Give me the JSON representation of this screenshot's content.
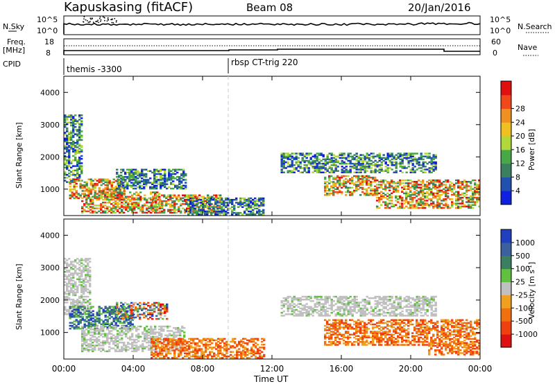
{
  "header": {
    "station": "Kapuskasing (fitACF)",
    "beam": "Beam 08",
    "date": "20/Jan/2016"
  },
  "sky_panel": {
    "left_label": "N.Sky",
    "right_label": "N.Search",
    "left_ticks": [
      "10^5",
      "10^0"
    ],
    "right_ticks": [
      "10^5",
      "10^0"
    ]
  },
  "freq_panel": {
    "left_label_1": "Freq.",
    "left_label_2": "[MHz]",
    "right_label": "Nave",
    "left_ticks": [
      "18",
      "8"
    ],
    "right_ticks": [
      "60",
      "0"
    ]
  },
  "cpid": {
    "label": "CPID",
    "segments": [
      {
        "time": 0.0,
        "text": "themis -3300"
      },
      {
        "time": 9.5,
        "text": "rbsp CT-trig 220"
      }
    ]
  },
  "chart_data": [
    {
      "type": "heatmap",
      "title": "Power",
      "ylabel": "Slant Range [km]",
      "xlim": [
        0,
        24
      ],
      "ylim": [
        180,
        4500
      ],
      "yticks": [
        1000,
        2000,
        3000,
        4000
      ],
      "colorbar": {
        "label": "Power [dB]",
        "ticks": [
          "4",
          "8",
          "12",
          "16",
          "20",
          "24",
          "28"
        ],
        "colors": [
          "#1020e0",
          "#2050b0",
          "#3a8060",
          "#48a848",
          "#b0d838",
          "#f0c020",
          "#f09020",
          "#f04818",
          "#e01010"
        ]
      },
      "echo_regions": [
        {
          "t": [
            0.0,
            1.0
          ],
          "r": [
            1200,
            3300
          ],
          "level": "mid"
        },
        {
          "t": [
            0.3,
            3.5
          ],
          "r": [
            700,
            1300
          ],
          "level": "high"
        },
        {
          "t": [
            1.0,
            5.5
          ],
          "r": [
            250,
            900
          ],
          "level": "high"
        },
        {
          "t": [
            3.0,
            7.0
          ],
          "r": [
            1000,
            1600
          ],
          "level": "mid"
        },
        {
          "t": [
            5.0,
            9.0
          ],
          "r": [
            250,
            800
          ],
          "level": "high"
        },
        {
          "t": [
            7.0,
            11.5
          ],
          "r": [
            200,
            700
          ],
          "level": "mid"
        },
        {
          "t": [
            12.5,
            21.5
          ],
          "r": [
            1500,
            2100
          ],
          "level": "mid"
        },
        {
          "t": [
            15.0,
            18.0
          ],
          "r": [
            800,
            1400
          ],
          "level": "high"
        },
        {
          "t": [
            18.0,
            24.0
          ],
          "r": [
            400,
            1300
          ],
          "level": "high"
        }
      ]
    },
    {
      "type": "heatmap",
      "title": "Velocity",
      "ylabel": "Slant Range [km]",
      "xlabel": "Time UT",
      "xlim": [
        0,
        24
      ],
      "ylim": [
        180,
        4500
      ],
      "yticks": [
        1000,
        2000,
        3000,
        4000
      ],
      "xticks": [
        "00:00",
        "04:00",
        "08:00",
        "12:00",
        "16:00",
        "20:00",
        "00:00"
      ],
      "colorbar": {
        "label": "Velocity [m s-1]",
        "ticks": [
          "1000",
          "500",
          "100",
          "25",
          "-25",
          "-100",
          "-500",
          "-1000"
        ],
        "colors": [
          "#2040c0",
          "#3a60a0",
          "#3a8060",
          "#60c040",
          "#c0c0c0",
          "#f0a020",
          "#f07010",
          "#f04010",
          "#e01010"
        ]
      },
      "echo_regions": [
        {
          "t": [
            0.0,
            1.5
          ],
          "r": [
            1500,
            3300
          ],
          "level": "ground"
        },
        {
          "t": [
            0.3,
            4.0
          ],
          "r": [
            1100,
            1800
          ],
          "level": "toward"
        },
        {
          "t": [
            1.0,
            7.0
          ],
          "r": [
            400,
            1200
          ],
          "level": "ground"
        },
        {
          "t": [
            3.0,
            6.0
          ],
          "r": [
            1400,
            1900
          ],
          "level": "mixed"
        },
        {
          "t": [
            5.0,
            11.5
          ],
          "r": [
            200,
            800
          ],
          "level": "away"
        },
        {
          "t": [
            12.5,
            21.5
          ],
          "r": [
            1500,
            2100
          ],
          "level": "ground"
        },
        {
          "t": [
            15.0,
            24.0
          ],
          "r": [
            600,
            1400
          ],
          "level": "away"
        },
        {
          "t": [
            21.0,
            24.0
          ],
          "r": [
            300,
            700
          ],
          "level": "away"
        }
      ]
    }
  ]
}
